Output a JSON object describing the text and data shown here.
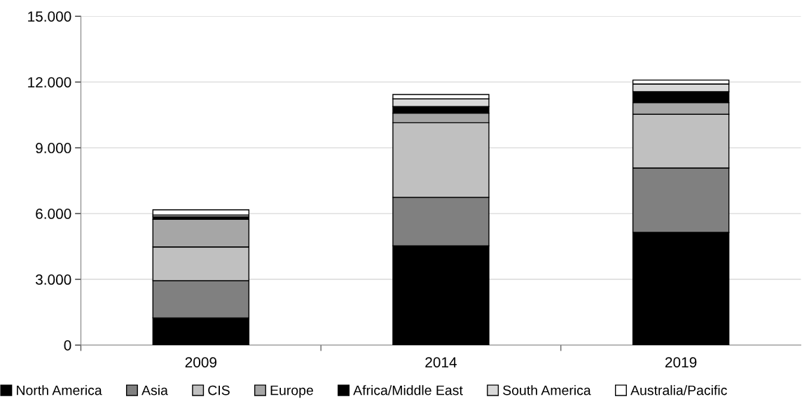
{
  "chart_data": {
    "type": "bar",
    "stacked": true,
    "categories": [
      "2009",
      "2014",
      "2019"
    ],
    "series": [
      {
        "name": "North America",
        "color": "#000000",
        "values": [
          1240,
          4530,
          5140
        ]
      },
      {
        "name": "Asia",
        "color": "#808080",
        "values": [
          1700,
          2210,
          2940
        ]
      },
      {
        "name": "CIS",
        "color": "#c0c0c0",
        "values": [
          1540,
          3400,
          2450
        ]
      },
      {
        "name": "Europe",
        "color": "#a6a6a6",
        "values": [
          1260,
          440,
          530
        ]
      },
      {
        "name": "Africa/Middle East",
        "color": "#000000",
        "values": [
          110,
          300,
          500
        ]
      },
      {
        "name": "South America",
        "color": "#d9d9d9",
        "values": [
          80,
          350,
          350
        ]
      },
      {
        "name": "Australia/Pacific",
        "color": "#ffffff",
        "values": [
          240,
          200,
          180
        ]
      }
    ],
    "ylim": [
      0,
      15000
    ],
    "yticks": [
      {
        "value": 0,
        "label": "0"
      },
      {
        "value": 3000,
        "label": "3.000"
      },
      {
        "value": 6000,
        "label": "6.000"
      },
      {
        "value": 9000,
        "label": "9.000"
      },
      {
        "value": 12000,
        "label": "12.000"
      },
      {
        "value": 15000,
        "label": "15.000"
      }
    ],
    "grid": "y",
    "legend": "bottom"
  }
}
